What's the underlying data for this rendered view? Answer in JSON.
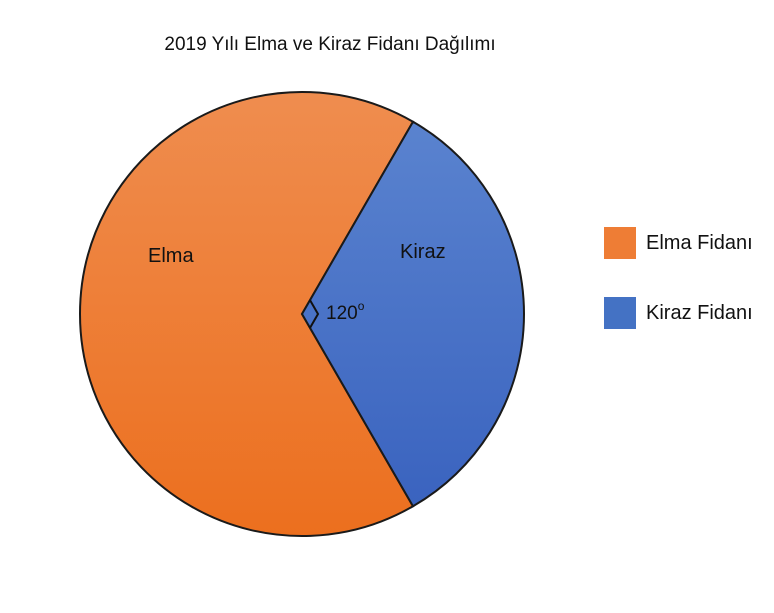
{
  "chart_data": {
    "type": "pie",
    "title": "2019 Yılı Elma ve Kiraz Fidanı Dağılımı",
    "slices": [
      {
        "label": "Elma",
        "legend": "Elma Fidanı",
        "angle": 240,
        "color": "#ee7d35"
      },
      {
        "label": "Kiraz",
        "legend": "Kiraz Fidanı",
        "angle": 120,
        "color": "#4472c4"
      }
    ],
    "angle_annotation": {
      "value": "120",
      "unit": "o"
    },
    "legend_position": "right"
  }
}
